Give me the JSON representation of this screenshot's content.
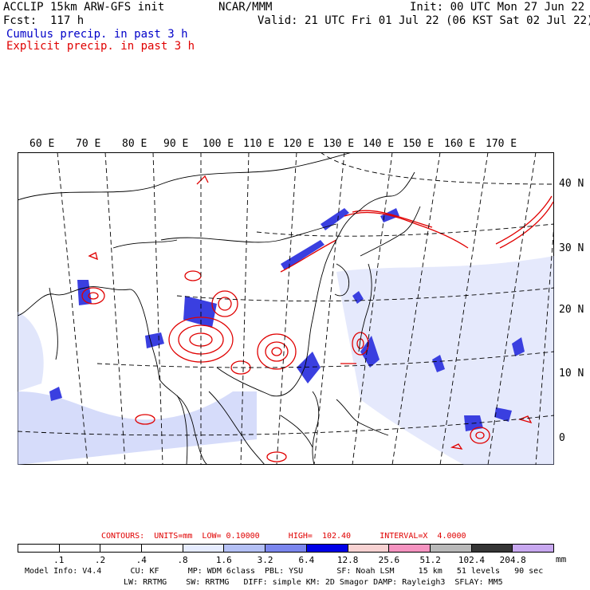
{
  "header": {
    "line1_left": "ACCLIP 15km ARW-GFS init",
    "line1_center": "NCAR/MMM",
    "line1_right": "Init: 00 UTC Mon 27 Jun 22",
    "line2_left": "Fcst:  117 h",
    "line2_right": "Valid: 21 UTC Fri 01 Jul 22 (06 KST Sat 02 Jul 22)",
    "cumulus_label": "Cumulus precip. in past 3 h",
    "explicit_label": "Explicit precip. in past 3 h"
  },
  "colors": {
    "cumulus": "#0000c8",
    "explicit": "#e00000",
    "coast": "#000000",
    "grid": "#000000"
  },
  "map": {
    "lon_labels": [
      "60 E",
      "70 E",
      "80 E",
      "90 E",
      "100 E",
      "110 E",
      "120 E",
      "130 E",
      "140 E",
      "150 E",
      "160 E",
      "170 E"
    ],
    "lat_labels": [
      "40 N",
      "30 N",
      "20 N",
      "10 N",
      "0"
    ]
  },
  "contours_line": {
    "text": "CONTOURS:  UNITS=mm  LOW= 0.10000      HIGH=  102.40      INTERVAL=X  4.0000"
  },
  "colorbar": {
    "labels": [
      ".1",
      ".2",
      ".4",
      ".8",
      "1.6",
      "3.2",
      "6.4",
      "12.8",
      "25.6",
      "51.2",
      "102.4",
      "204.8"
    ],
    "unit": "mm",
    "colors": [
      "#ffffff",
      "#ffffff",
      "#ffffff",
      "#ffffff",
      "#e6ecff",
      "#b4c0f5",
      "#7b86ee",
      "#0000e6",
      "#f7d2d2",
      "#f593c0",
      "#b9b9b9",
      "#363636",
      "#c8a8f0"
    ]
  },
  "footer": {
    "line1": "Model Info: V4.4      CU: KF      MP: WDM 6class  PBL: YSU       SF: Noah LSM     15 km   51 levels   90 sec",
    "line2": "LW: RRTMG    SW: RRTMG   DIFF: simple KM: 2D Smagor DAMP: Rayleigh3  SFLAY: MM5"
  }
}
